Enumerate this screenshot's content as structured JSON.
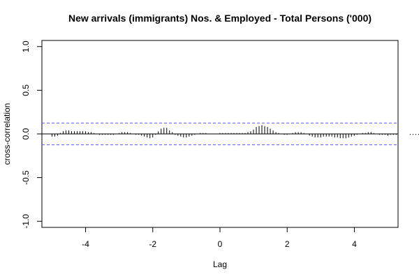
{
  "chart_data": {
    "type": "ccf",
    "title": "New arrivals (immigrants) Nos. & Employed - Total Persons ('000)",
    "xlabel": "Lag",
    "ylabel": "cross-correlation",
    "xlim": [
      -5.3,
      5.3
    ],
    "ylim": [
      -1.07,
      1.07
    ],
    "x_ticks": [
      "-4",
      "-2",
      "0",
      "2",
      "4"
    ],
    "y_ticks": [
      "-1.0",
      "-0.5",
      "0.0",
      "0.5",
      "1.0"
    ],
    "confidence_bound": 0.125,
    "bound_color": "#5a5aff",
    "lag_step": 0.0833,
    "lag_min": -5.0,
    "values": [
      -0.03,
      -0.03,
      -0.02,
      0.01,
      0.03,
      0.04,
      0.04,
      0.03,
      0.03,
      0.03,
      0.03,
      0.03,
      0.03,
      0.02,
      0.02,
      0.01,
      0.0,
      -0.01,
      -0.01,
      -0.01,
      -0.01,
      -0.01,
      -0.01,
      0.0,
      0.01,
      0.02,
      0.02,
      0.02,
      0.01,
      0.0,
      -0.01,
      -0.01,
      -0.02,
      -0.03,
      -0.04,
      -0.05,
      -0.04,
      -0.01,
      0.03,
      0.06,
      0.07,
      0.07,
      0.04,
      0.02,
      -0.01,
      -0.02,
      -0.03,
      -0.04,
      -0.04,
      -0.03,
      -0.02,
      -0.01,
      0.0,
      0.01,
      0.01,
      0.01,
      0.0,
      0.0,
      0.0,
      0.0,
      0.01,
      0.01,
      0.01,
      0.01,
      0.01,
      0.01,
      0.01,
      0.01,
      0.01,
      0.01,
      0.02,
      0.03,
      0.05,
      0.08,
      0.09,
      0.1,
      0.09,
      0.08,
      0.06,
      0.04,
      0.02,
      0.01,
      0.0,
      -0.01,
      -0.01,
      0.0,
      0.01,
      0.02,
      0.02,
      0.02,
      0.01,
      0.0,
      -0.02,
      -0.03,
      -0.04,
      -0.04,
      -0.04,
      -0.03,
      -0.03,
      -0.03,
      -0.03,
      -0.04,
      -0.04,
      -0.05,
      -0.05,
      -0.05,
      -0.04,
      -0.03,
      -0.02,
      -0.01,
      0.0,
      0.01,
      0.01,
      0.02,
      0.02,
      0.01,
      0.0,
      -0.01,
      -0.01,
      -0.01,
      -0.02,
      -0.01,
      -0.01,
      -0.01,
      0.0,
      0.0,
      0.0,
      0.0,
      -0.01,
      -0.01,
      -0.01,
      -0.01,
      0.0,
      0.01,
      0.01,
      0.01,
      0.01,
      0.02,
      0.02
    ]
  }
}
